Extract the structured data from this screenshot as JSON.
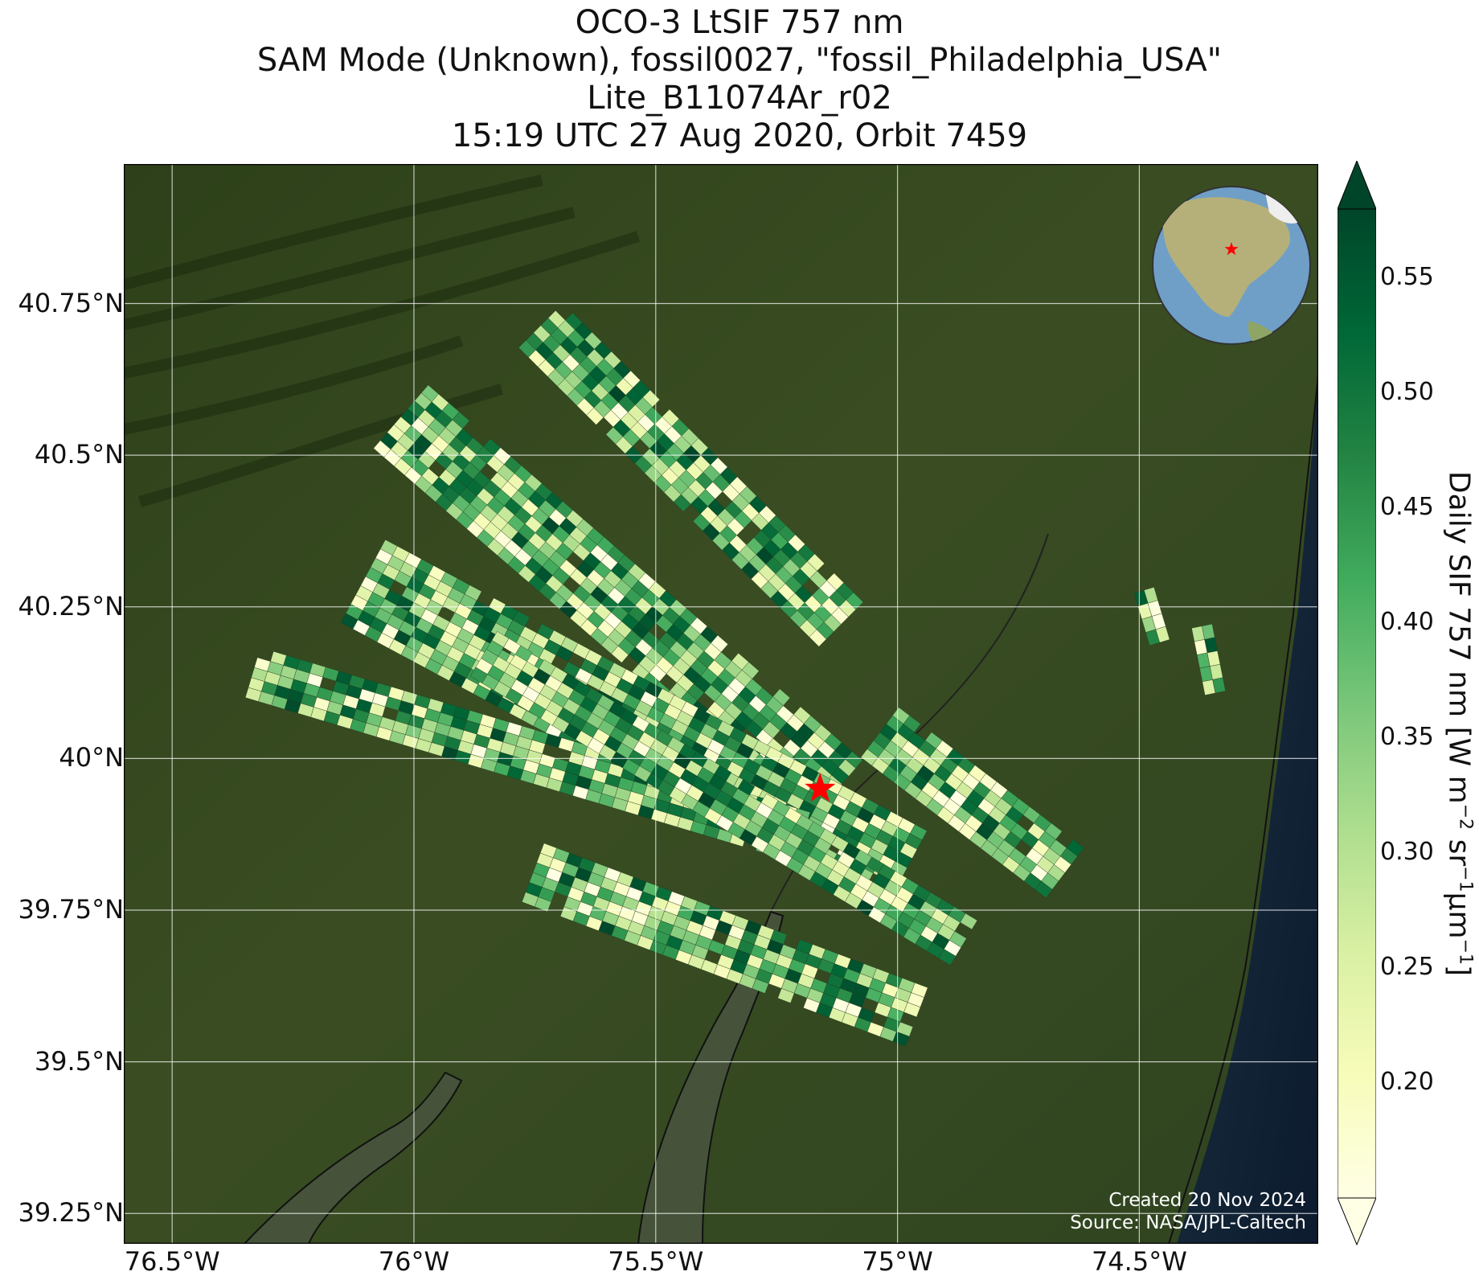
{
  "title_lines": [
    "OCO-3 LtSIF 757 nm",
    "SAM Mode (Unknown), fossil0027, \"fossil_Philadelphia_USA\"",
    "Lite_B11074Ar_r02",
    "15:19 UTC 27 Aug 2020, Orbit 7459"
  ],
  "map": {
    "lon_range": [
      -76.6,
      -74.13
    ],
    "lat_range": [
      39.2,
      40.98
    ],
    "lat_ticks": [
      {
        "value": 40.75,
        "label": "40.75°N"
      },
      {
        "value": 40.5,
        "label": "40.5°N"
      },
      {
        "value": 40.25,
        "label": "40.25°N"
      },
      {
        "value": 40.0,
        "label": "40°N"
      },
      {
        "value": 39.75,
        "label": "39.75°N"
      },
      {
        "value": 39.5,
        "label": "39.5°N"
      },
      {
        "value": 39.25,
        "label": "39.25°N"
      }
    ],
    "lon_ticks": [
      {
        "value": -76.5,
        "label": "76.5°W"
      },
      {
        "value": -76.0,
        "label": "76°W"
      },
      {
        "value": -75.5,
        "label": "75.5°W"
      },
      {
        "value": -75.0,
        "label": "75°W"
      },
      {
        "value": -74.5,
        "label": "74.5°W"
      }
    ],
    "gridlines": true,
    "target": {
      "name": "fossil_Philadelphia_USA",
      "lon": -75.16,
      "lat": 39.95,
      "marker": "red-star",
      "color": "#ff0000"
    },
    "swaths": [
      {
        "lon_start": -75.73,
        "lat_start": 40.72,
        "lon_end": -75.1,
        "lat_end": 40.22,
        "columns": 6
      },
      {
        "lon_start": -76.02,
        "lat_start": 40.57,
        "lon_end": -75.12,
        "lat_end": 39.95,
        "columns": 8
      },
      {
        "lon_start": -76.1,
        "lat_start": 40.3,
        "lon_end": -74.98,
        "lat_end": 39.82,
        "columns": 9
      },
      {
        "lon_start": -76.33,
        "lat_start": 40.15,
        "lon_end": -75.2,
        "lat_end": 39.88,
        "columns": 5
      },
      {
        "lon_start": -75.85,
        "lat_start": 40.18,
        "lon_end": -74.85,
        "lat_end": 39.7,
        "columns": 5
      },
      {
        "lon_start": -75.75,
        "lat_start": 39.82,
        "lon_end": -74.95,
        "lat_end": 39.58,
        "columns": 6
      },
      {
        "lon_start": -75.03,
        "lat_start": 40.05,
        "lon_end": -74.65,
        "lat_end": 39.82,
        "columns": 6
      },
      {
        "lon_start": -74.48,
        "lat_start": 40.28,
        "lon_end": -74.45,
        "lat_end": 40.2,
        "columns": 2
      },
      {
        "lon_start": -74.36,
        "lat_start": 40.22,
        "lon_end": -74.33,
        "lat_end": 40.1,
        "columns": 2
      }
    ]
  },
  "colorbar": {
    "label": "Daily SIF 757 nm [W m",
    "label_sup1": "−2",
    "label_mid": " sr",
    "label_sup2": "−1",
    "label_mid2": "µm",
    "label_sup3": "−1",
    "label_end": "]",
    "range": [
      0.15,
      0.58
    ],
    "extend": "both",
    "ticks": [
      {
        "value": 0.55,
        "label": "0.55"
      },
      {
        "value": 0.5,
        "label": "0.50"
      },
      {
        "value": 0.45,
        "label": "0.45"
      },
      {
        "value": 0.4,
        "label": "0.40"
      },
      {
        "value": 0.35,
        "label": "0.35"
      },
      {
        "value": 0.3,
        "label": "0.30"
      },
      {
        "value": 0.25,
        "label": "0.25"
      },
      {
        "value": 0.2,
        "label": "0.20"
      }
    ],
    "colors": [
      "#ffffe5",
      "#f7fcb9",
      "#d9f0a3",
      "#addd8e",
      "#78c679",
      "#41ab5d",
      "#238443",
      "#006837",
      "#004529"
    ]
  },
  "credits": [
    "Created 20 Nov 2024",
    "Source: NASA/JPL-Caltech"
  ]
}
